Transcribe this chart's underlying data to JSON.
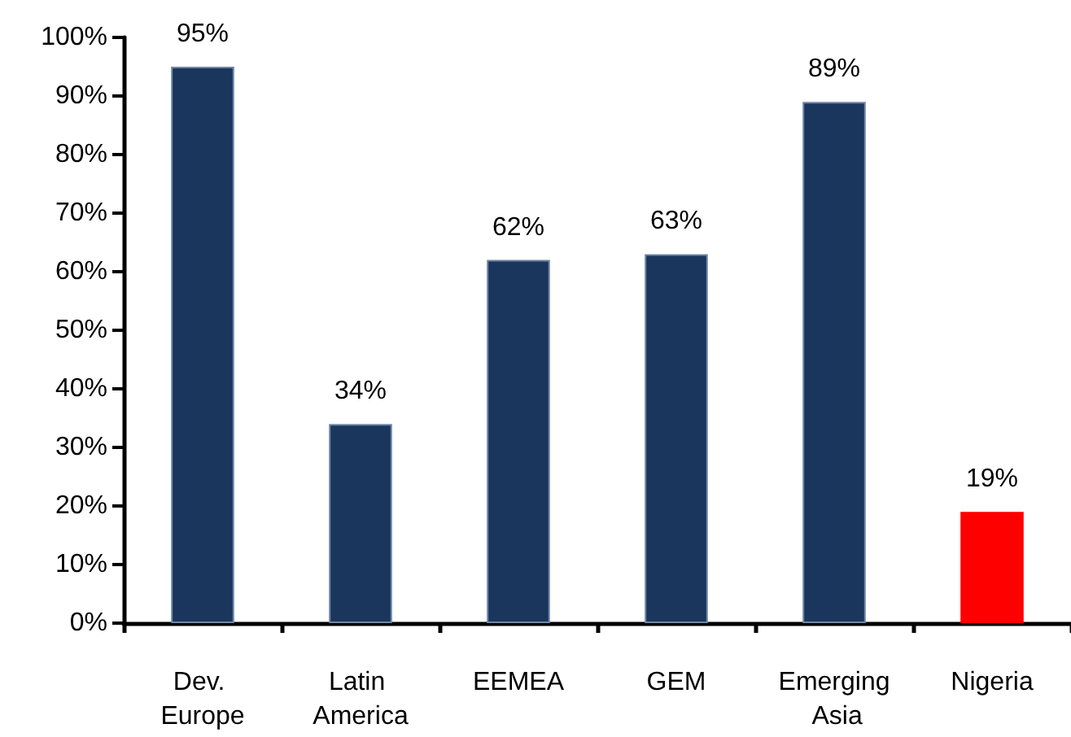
{
  "chart_data": {
    "type": "bar",
    "categories": [
      "Dev. Europe",
      "Latin America",
      "EEMEA",
      "GEM",
      "Emerging Asia",
      "Nigeria"
    ],
    "values": [
      95,
      34,
      62,
      63,
      89,
      19
    ],
    "colors": [
      "#1b365d",
      "#1b365d",
      "#1b365d",
      "#1b365d",
      "#1b365d",
      "#ff0000"
    ],
    "value_labels": [
      "95%",
      "34%",
      "62%",
      "63%",
      "89%",
      "19%"
    ],
    "ylim": [
      0,
      100
    ],
    "yticks": [
      {
        "value": 0,
        "label": "0%"
      },
      {
        "value": 10,
        "label": "10%"
      },
      {
        "value": 20,
        "label": "20%"
      },
      {
        "value": 30,
        "label": "30%"
      },
      {
        "value": 40,
        "label": "40%"
      },
      {
        "value": 50,
        "label": "50%"
      },
      {
        "value": 60,
        "label": "60%"
      },
      {
        "value": 70,
        "label": "70%"
      },
      {
        "value": 80,
        "label": "80%"
      },
      {
        "value": 90,
        "label": "90%"
      },
      {
        "value": 100,
        "label": "100%"
      }
    ],
    "grid": false
  }
}
